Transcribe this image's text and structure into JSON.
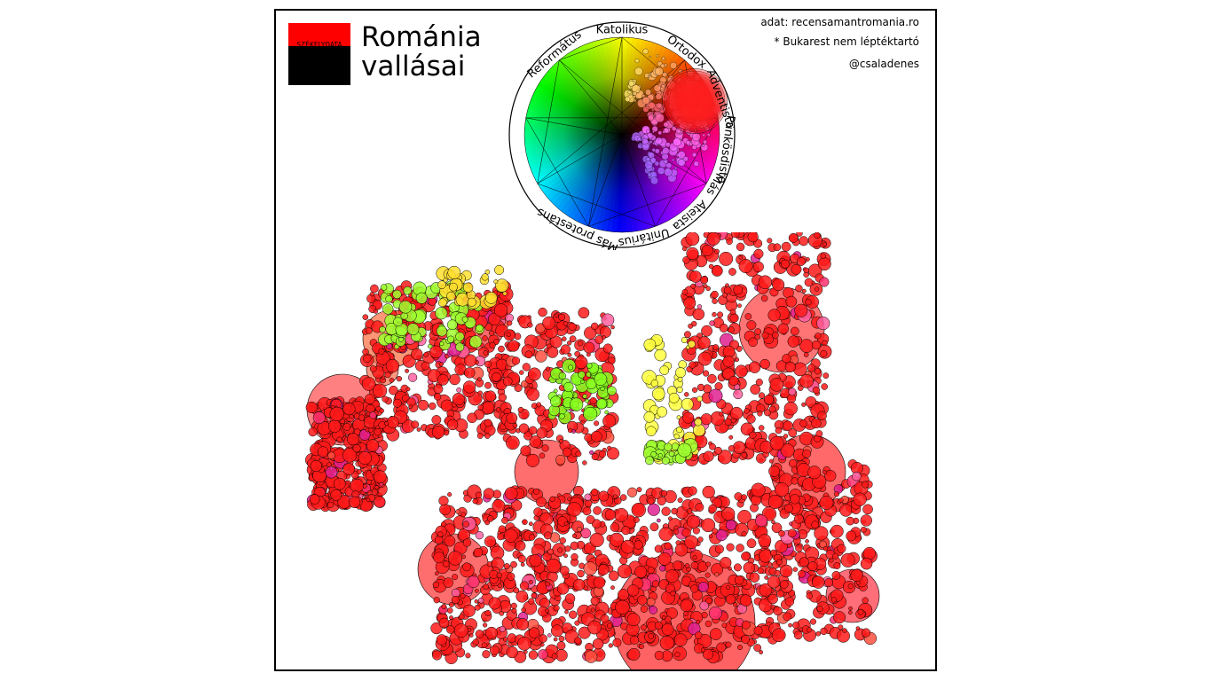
{
  "header": {
    "brand": "SZÉKELYDATA",
    "title_line1": "Románia",
    "title_line2": "vallásai"
  },
  "credits": {
    "source": "adat: recensamantromania.ro",
    "note": "* Bukarest nem léptéktartó",
    "author": "@csaladenes"
  },
  "legend_wheel": {
    "labels": [
      "Katolikus",
      "Ortodox",
      "Adventista",
      "Pünkösdista",
      "Más",
      "Ateista",
      "Unitárius",
      "Más protestáns",
      "Református"
    ],
    "colors": {
      "ortodox": "#ff0000",
      "katolikus": "#ffff00",
      "reformatus": "#66ff00",
      "unitarius": "#0000ff",
      "ateista": "#000000",
      "pünkösdista": "#ff00ff"
    }
  },
  "map": {
    "dominant_color": "#ff0000",
    "outline_color": "#000000"
  }
}
